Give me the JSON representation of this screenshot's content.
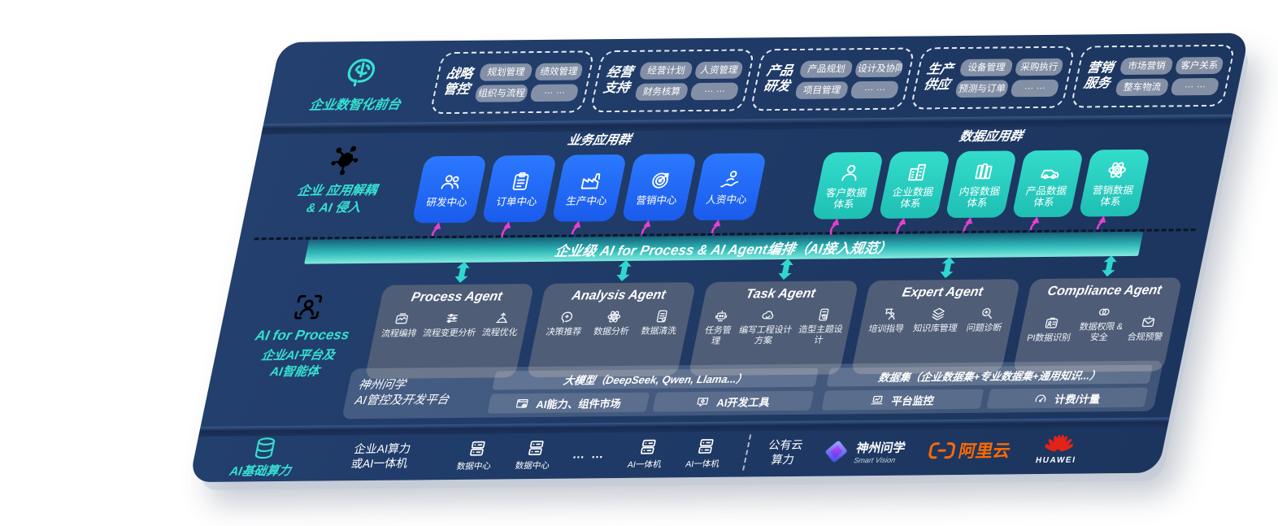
{
  "colors": {
    "panel_navy": "#1F3A66",
    "accent_teal": "#35E1D2",
    "box_blue": "#1E66F0",
    "box_teal": "#2BD5C8",
    "band_teal": "#2FB9B8",
    "magenta_arrow": "#E83FD0",
    "agent_gray": "#525F78",
    "alibaba_orange": "#FF6A00",
    "huawei_red": "#E2231A"
  },
  "front_office": {
    "icon": "brain-head",
    "label": "企业数智化前台",
    "groups": [
      {
        "title": "战略\n管控",
        "chips": [
          "规划管理",
          "绩效管理",
          "组织与流程",
          "… …"
        ]
      },
      {
        "title": "经营\n支持",
        "chips": [
          "经营计划",
          "人资管理",
          "财务核算",
          "… …"
        ]
      },
      {
        "title": "产品\n研发",
        "chips": [
          "产品规划",
          "设计及协同",
          "项目管理",
          "… …"
        ]
      },
      {
        "title": "生产\n供应",
        "chips": [
          "设备管理",
          "采购执行",
          "预测与订单",
          "… …"
        ]
      },
      {
        "title": "营销\n服务",
        "chips": [
          "市场营销",
          "客户关系",
          "整车物流",
          "… …"
        ]
      }
    ]
  },
  "decoupling": {
    "icon": "molecule",
    "label": "企业 应用解耦\n& AI 侵入",
    "business": {
      "header": "业务应用群",
      "boxes": [
        {
          "icon": "people",
          "label": "研发中心"
        },
        {
          "icon": "clipboard",
          "label": "订单中心"
        },
        {
          "icon": "factory",
          "label": "生产中心"
        },
        {
          "icon": "target",
          "label": "营销中心"
        },
        {
          "icon": "person-chart",
          "label": "人资中心"
        }
      ]
    },
    "data": {
      "header": "数据应用群",
      "boxes": [
        {
          "icon": "user",
          "label": "客户数据\n体系"
        },
        {
          "icon": "building",
          "label": "企业数据\n体系"
        },
        {
          "icon": "books",
          "label": "内容数据\n体系"
        },
        {
          "icon": "car",
          "label": "产品数据\n体系"
        },
        {
          "icon": "atom",
          "label": "营销数据\n体系"
        }
      ]
    }
  },
  "band": {
    "text": "企业级 AI for Process & AI Agent编排（AI接入规范）"
  },
  "ai_platform": {
    "icon": "person-focus",
    "label_title": "AI for Process",
    "label_sub": "企业AI平台及\nAI智能体",
    "agents": [
      {
        "title": "Process Agent",
        "items": [
          {
            "icon": "flow",
            "label": "流程编排"
          },
          {
            "icon": "sliders",
            "label": "流程变更分析"
          },
          {
            "icon": "optimize",
            "label": "流程优化"
          }
        ]
      },
      {
        "title": "Analysis Agent",
        "items": [
          {
            "icon": "head",
            "label": "决策推荐"
          },
          {
            "icon": "atom",
            "label": "数据分析"
          },
          {
            "icon": "doc",
            "label": "数据清洗"
          }
        ]
      },
      {
        "title": "Task Agent",
        "items": [
          {
            "icon": "robot",
            "label": "任务管理"
          },
          {
            "icon": "cloud",
            "label": "编写工程设计方案"
          },
          {
            "icon": "design",
            "label": "造型主题设计"
          }
        ]
      },
      {
        "title": "Expert Agent",
        "items": [
          {
            "icon": "teach",
            "label": "培训指导"
          },
          {
            "icon": "layers",
            "label": "知识库管理"
          },
          {
            "icon": "diagnose",
            "label": "问题诊断"
          }
        ]
      },
      {
        "title": "Compliance Agent",
        "items": [
          {
            "icon": "idcard",
            "label": "PI数据识别"
          },
          {
            "icon": "lock",
            "label": "数据权限 &\n安全"
          },
          {
            "icon": "mail",
            "label": "合规预警"
          }
        ]
      }
    ],
    "platform": {
      "name": "神州问学\nAI管控及开发平台",
      "model_bar": "大模型（DeepSeek, Qwen, Llama...）",
      "dataset_bar": "数据集（企业数据集+专业数据集+通用知识...）",
      "cells": [
        {
          "icon": "market",
          "label": "AI能力、组件市场"
        },
        {
          "icon": "devtools",
          "label": "AI开发工具"
        },
        {
          "icon": "monitor",
          "label": "平台监控"
        },
        {
          "icon": "meter",
          "label": "计费/计量"
        }
      ]
    }
  },
  "infra": {
    "icon": "database",
    "label": "AI基础算力",
    "compute_label": "企业AI算力\n或AI一体机",
    "nodes": [
      {
        "icon": "server",
        "label": "数据中心"
      },
      {
        "icon": "server",
        "label": "数据中心"
      },
      {
        "icon": "server",
        "label": "AI一体机"
      },
      {
        "icon": "server",
        "label": "AI一体机"
      }
    ],
    "dots": "… …",
    "public_cloud": "公有云\n算力",
    "partners": {
      "smartvision": {
        "name": "神州问学",
        "sub": "Smart Vision"
      },
      "alibaba": "阿里云",
      "huawei": "HUAWEI"
    }
  }
}
